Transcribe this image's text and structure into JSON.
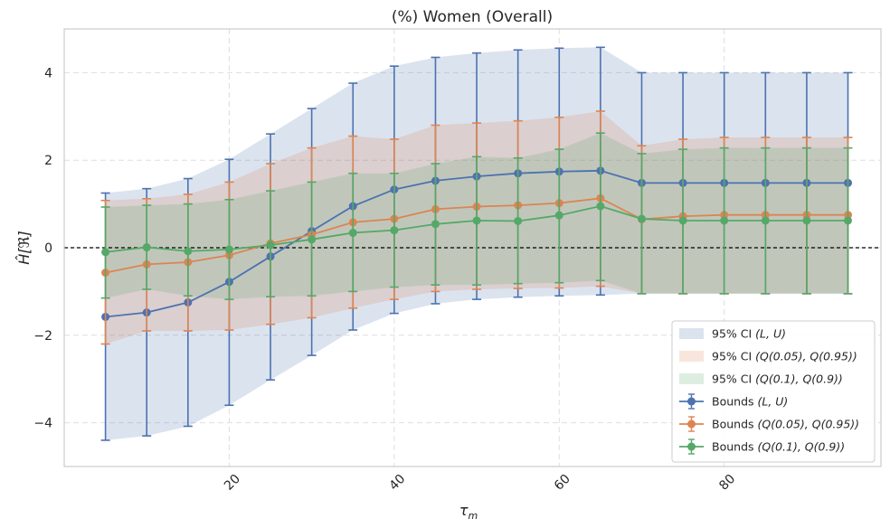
{
  "chart_data": {
    "type": "line",
    "title": "(%) Women (Overall)",
    "xlabel": "τ",
    "xlabel_sub": "m",
    "ylabel": "Ĥ[ℜ]",
    "xlim": [
      0,
      99
    ],
    "ylim": [
      -5,
      5
    ],
    "xticks": [
      20,
      40,
      60,
      80
    ],
    "xtick_labels": [
      "20",
      "40",
      "60",
      "80"
    ],
    "yticks": [
      -4,
      -2,
      0,
      2,
      4
    ],
    "ytick_labels": [
      "−4",
      "−2",
      "0",
      "2",
      "4"
    ],
    "grid": true,
    "zero_line": true,
    "legend_position": "lower-right",
    "x": [
      5,
      10,
      15,
      20,
      25,
      30,
      35,
      40,
      45,
      50,
      55,
      60,
      65,
      70,
      75,
      80,
      85,
      90,
      95
    ],
    "bands": [
      {
        "name": "95% CI (L, U)",
        "color": "#4c72b0",
        "lower": [
          -4.4,
          -4.3,
          -4.08,
          -3.6,
          -3.02,
          -2.46,
          -1.88,
          -1.5,
          -1.28,
          -1.18,
          -1.13,
          -1.1,
          -1.08,
          -1.05,
          -1.05,
          -1.05,
          -1.05,
          -1.05,
          -1.05
        ],
        "upper": [
          1.25,
          1.35,
          1.58,
          2.02,
          2.6,
          3.18,
          3.76,
          4.15,
          4.35,
          4.45,
          4.52,
          4.56,
          4.58,
          4.0,
          4.0,
          4.0,
          4.0,
          4.0,
          4.0
        ]
      },
      {
        "name": "95% CI (Q(0.05), Q(0.95))",
        "color": "#dd8452",
        "lower": [
          -2.2,
          -1.9,
          -1.9,
          -1.88,
          -1.75,
          -1.6,
          -1.38,
          -1.18,
          -1.0,
          -0.95,
          -0.93,
          -0.92,
          -0.88,
          -1.05,
          -1.05,
          -1.05,
          -1.05,
          -1.05,
          -1.05
        ],
        "upper": [
          1.08,
          1.12,
          1.22,
          1.5,
          1.92,
          2.28,
          2.55,
          2.48,
          2.8,
          2.85,
          2.9,
          2.98,
          3.12,
          2.33,
          2.48,
          2.52,
          2.52,
          2.52,
          2.52
        ]
      },
      {
        "name": "95% CI (Q(0.1), Q(0.9))",
        "color": "#55a868",
        "lower": [
          -1.15,
          -0.95,
          -1.1,
          -1.18,
          -1.12,
          -1.1,
          -1.0,
          -0.9,
          -0.85,
          -0.85,
          -0.82,
          -0.8,
          -0.75,
          -1.05,
          -1.05,
          -1.05,
          -1.05,
          -1.05,
          -1.05
        ],
        "upper": [
          0.93,
          0.97,
          1.0,
          1.1,
          1.3,
          1.5,
          1.7,
          1.7,
          1.92,
          2.08,
          2.05,
          2.25,
          2.62,
          2.15,
          2.25,
          2.28,
          2.28,
          2.28,
          2.28
        ]
      }
    ],
    "series": [
      {
        "name": "Bounds (L, U)",
        "color": "#4c72b0",
        "values": [
          -1.58,
          -1.48,
          -1.25,
          -0.78,
          -0.2,
          0.38,
          0.95,
          1.33,
          1.53,
          1.63,
          1.7,
          1.74,
          1.76,
          1.48,
          1.48,
          1.48,
          1.48,
          1.48,
          1.48
        ]
      },
      {
        "name": "Bounds (Q(0.05), Q(0.95))",
        "color": "#dd8452",
        "values": [
          -0.57,
          -0.38,
          -0.33,
          -0.17,
          0.1,
          0.3,
          0.58,
          0.66,
          0.88,
          0.94,
          0.97,
          1.02,
          1.13,
          0.65,
          0.72,
          0.75,
          0.75,
          0.75,
          0.75
        ]
      },
      {
        "name": "Bounds (Q(0.1), Q(0.9))",
        "color": "#55a868",
        "values": [
          -0.1,
          0.01,
          -0.08,
          -0.04,
          0.06,
          0.19,
          0.34,
          0.4,
          0.54,
          0.62,
          0.61,
          0.74,
          0.95,
          0.66,
          0.62,
          0.62,
          0.62,
          0.62,
          0.62
        ]
      }
    ],
    "legend": [
      {
        "kind": "band",
        "label": "95% CI ",
        "math": "(L, U)",
        "color": "#4c72b0"
      },
      {
        "kind": "band",
        "label": "95% CI ",
        "math": "(Q(0.05), Q(0.95))",
        "color": "#dd8452"
      },
      {
        "kind": "band",
        "label": "95% CI ",
        "math": "(Q(0.1), Q(0.9))",
        "color": "#55a868"
      },
      {
        "kind": "line",
        "label": "Bounds ",
        "math": "(L, U)",
        "color": "#4c72b0"
      },
      {
        "kind": "line",
        "label": "Bounds ",
        "math": "(Q(0.05), Q(0.95))",
        "color": "#dd8452"
      },
      {
        "kind": "line",
        "label": "Bounds ",
        "math": "(Q(0.1), Q(0.9))",
        "color": "#55a868"
      }
    ]
  }
}
